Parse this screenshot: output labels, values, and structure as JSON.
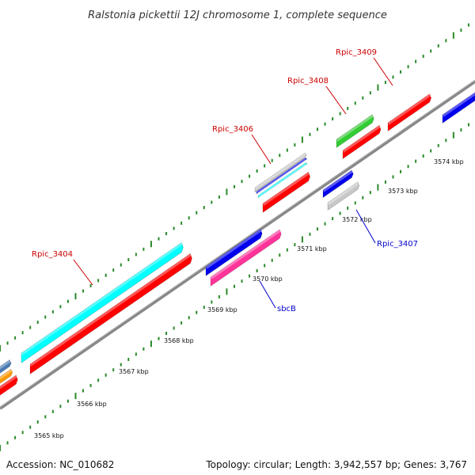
{
  "title": "Ralstonia pickettii 12J chromosome 1, complete sequence",
  "footer": {
    "accession": "Accession: NC_010682",
    "summary": "Topology: circular; Length: 3,942,557 bp; Genes: 3,767"
  },
  "ticks": [
    {
      "label": "3565 kbp"
    },
    {
      "label": "3566 kbp"
    },
    {
      "label": "3567 kbp"
    },
    {
      "label": "3568 kbp"
    },
    {
      "label": "3569 kbp"
    },
    {
      "label": "3570 kbp"
    },
    {
      "label": "3571 kbp"
    },
    {
      "label": "3572 kbp"
    },
    {
      "label": "3573 kbp"
    },
    {
      "label": "3574 kbp"
    }
  ],
  "gene_labels": [
    {
      "text": "Rpic_3404",
      "color": "#cc0000"
    },
    {
      "text": "Rpic_3406",
      "color": "#cc0000"
    },
    {
      "text": "Rpic_3408",
      "color": "#cc0000"
    },
    {
      "text": "Rpic_3409",
      "color": "#cc0000"
    },
    {
      "text": "Rpic_3407",
      "color": "#0000cc"
    },
    {
      "text": "sbcB",
      "color": "#0000cc"
    }
  ],
  "colors": {
    "backbone": "#888888",
    "tick_dash": "#2a8a2a",
    "red": "#ff0000",
    "blue": "#0000ee",
    "cyan": "#00ffff",
    "green": "#33cc33",
    "magenta": "#ff3399",
    "grey": "#c8c8c8",
    "orange": "#ff9900",
    "steelblue": "#4a7ab5"
  }
}
